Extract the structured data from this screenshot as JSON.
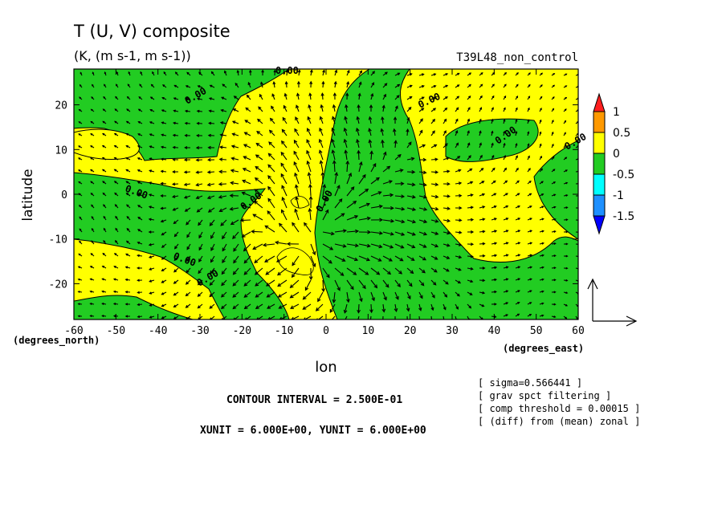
{
  "title": "T (U, V) composite",
  "subtitle": "(K, (m s-1, m s-1))",
  "run_label": "T39L48_non_control",
  "chart_data": {
    "type": "contour",
    "xlabel": "lon",
    "ylabel": "latitude",
    "x_unit_label": "(degrees_east)",
    "y_unit_label": "(degrees_north)",
    "xlim": [
      -60,
      60
    ],
    "ylim": [
      -28,
      28
    ],
    "x_ticks": [
      -60,
      -50,
      -40,
      -30,
      -20,
      -10,
      0,
      10,
      20,
      30,
      40,
      50,
      60
    ],
    "y_ticks": [
      -20,
      -10,
      0,
      10,
      20
    ],
    "x_tick_labels": [
      "-60",
      "-50",
      "-40",
      "-30",
      "-20",
      "-10",
      "0",
      "10",
      "20",
      "30",
      "40",
      "50",
      "60"
    ],
    "y_tick_labels": [
      "-20",
      "-10",
      "0",
      "10",
      "20"
    ],
    "contour_labels": [
      "0.00",
      "0.00",
      "0.00",
      "0.00",
      "0.00",
      "0.00",
      "0.00",
      "0.00",
      "0.00",
      "0.00"
    ],
    "colorbar": {
      "levels": [
        "1",
        "0.5",
        "0",
        "-0.5",
        "-1",
        "-1.5"
      ],
      "colors": [
        "#ff1f1f",
        "#ff9900",
        "#ffff00",
        "#22cc22",
        "#00ffff",
        "#1e90ff",
        "#0000ff"
      ]
    },
    "field_colors": {
      "positive": "#ffff00",
      "negative": "#22cc22"
    }
  },
  "footer": {
    "contour_interval": "CONTOUR INTERVAL = 2.500E-01",
    "units": "XUNIT = 6.000E+00, YUNIT = 6.000E+00",
    "notes": [
      "[ sigma=0.566441 ]",
      "[ grav spct filtering ]",
      "[ comp threshold = 0.00015 ]",
      "[ (diff) from (mean) zonal ]"
    ]
  }
}
